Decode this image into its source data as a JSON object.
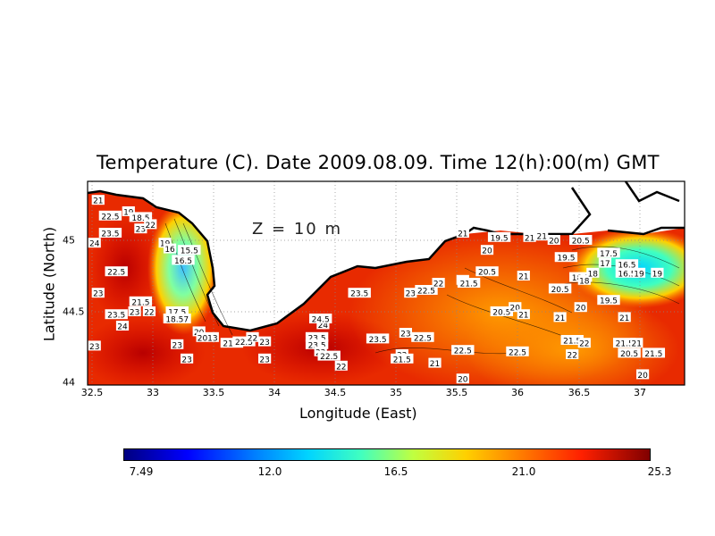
{
  "title": "Temperature (C). Date 2009.08.09. Time 12(h):00(m) GMT",
  "depth_label": "Z = 10 m",
  "xlabel": "Longitude (East)",
  "ylabel": "Latitude (North)",
  "x_ticks": [
    "32.5",
    "33",
    "33.5",
    "34",
    "34.5",
    "35",
    "35.5",
    "36",
    "36.5",
    "37"
  ],
  "y_ticks": [
    "45",
    "44.5",
    "44"
  ],
  "colorbar": {
    "ticks": [
      "7.49",
      "12.0",
      "16.5",
      "21.0",
      "25.3"
    ],
    "range": [
      7.49,
      25.3
    ]
  },
  "colors": {
    "land": "#ffffff",
    "coast": "#000000",
    "warm": "#e82000",
    "cold": "#00d4ff"
  },
  "chart_data": {
    "type": "heatmap",
    "title": "Temperature (C). Date 2009.08.09. Time 12(h):00(m) GMT",
    "xlabel": "Longitude (East)",
    "ylabel": "Latitude (North)",
    "xlim": [
      32.5,
      37.3
    ],
    "ylim": [
      44.0,
      45.35
    ],
    "colorbar_range": [
      7.49,
      25.3
    ],
    "grid": "dotted",
    "contour_labels": [
      {
        "lon": 32.55,
        "lat": 45.28,
        "t": "21"
      },
      {
        "lon": 32.65,
        "lat": 45.17,
        "t": "22.5"
      },
      {
        "lon": 32.65,
        "lat": 45.05,
        "t": "23.5"
      },
      {
        "lon": 32.52,
        "lat": 44.98,
        "t": "24"
      },
      {
        "lon": 32.8,
        "lat": 45.2,
        "t": "19"
      },
      {
        "lon": 32.9,
        "lat": 45.16,
        "t": "18.5"
      },
      {
        "lon": 32.9,
        "lat": 45.08,
        "t": "23"
      },
      {
        "lon": 32.98,
        "lat": 45.11,
        "t": "22"
      },
      {
        "lon": 33.1,
        "lat": 44.98,
        "t": "19"
      },
      {
        "lon": 33.14,
        "lat": 44.94,
        "t": "16"
      },
      {
        "lon": 33.3,
        "lat": 44.93,
        "t": "15.5"
      },
      {
        "lon": 33.25,
        "lat": 44.86,
        "t": "16.5"
      },
      {
        "lon": 32.7,
        "lat": 44.78,
        "t": "22.5"
      },
      {
        "lon": 32.55,
        "lat": 44.63,
        "t": "23"
      },
      {
        "lon": 32.9,
        "lat": 44.57,
        "t": "21.5"
      },
      {
        "lon": 32.7,
        "lat": 44.48,
        "t": "23.5"
      },
      {
        "lon": 32.85,
        "lat": 44.5,
        "t": "23"
      },
      {
        "lon": 32.97,
        "lat": 44.5,
        "t": "22"
      },
      {
        "lon": 33.2,
        "lat": 44.5,
        "t": "17.5"
      },
      {
        "lon": 33.2,
        "lat": 44.45,
        "t": "18.57"
      },
      {
        "lon": 32.75,
        "lat": 44.4,
        "t": "24"
      },
      {
        "lon": 33.38,
        "lat": 44.36,
        "t": "20"
      },
      {
        "lon": 33.45,
        "lat": 44.32,
        "t": "2013"
      },
      {
        "lon": 33.65,
        "lat": 44.28,
        "t": "21.5"
      },
      {
        "lon": 33.75,
        "lat": 44.29,
        "t": "22.5"
      },
      {
        "lon": 33.82,
        "lat": 44.32,
        "t": "22"
      },
      {
        "lon": 33.92,
        "lat": 44.29,
        "t": "23"
      },
      {
        "lon": 32.52,
        "lat": 44.26,
        "t": "23"
      },
      {
        "lon": 33.2,
        "lat": 44.27,
        "t": "23"
      },
      {
        "lon": 33.28,
        "lat": 44.17,
        "t": "23"
      },
      {
        "lon": 33.92,
        "lat": 44.17,
        "t": "23"
      },
      {
        "lon": 34.35,
        "lat": 44.32,
        "t": "23.5"
      },
      {
        "lon": 34.4,
        "lat": 44.41,
        "t": "24"
      },
      {
        "lon": 34.38,
        "lat": 44.45,
        "t": "24.5"
      },
      {
        "lon": 34.35,
        "lat": 44.27,
        "t": "23.5"
      },
      {
        "lon": 34.38,
        "lat": 44.22,
        "t": "23"
      },
      {
        "lon": 34.45,
        "lat": 44.19,
        "t": "22.5"
      },
      {
        "lon": 34.55,
        "lat": 44.12,
        "t": "22"
      },
      {
        "lon": 34.7,
        "lat": 44.63,
        "t": "23.5"
      },
      {
        "lon": 34.85,
        "lat": 44.31,
        "t": "23.5"
      },
      {
        "lon": 35.08,
        "lat": 44.35,
        "t": "23"
      },
      {
        "lon": 35.22,
        "lat": 44.32,
        "t": "22.5"
      },
      {
        "lon": 35.05,
        "lat": 44.2,
        "t": "22"
      },
      {
        "lon": 35.05,
        "lat": 44.17,
        "t": "21.5"
      },
      {
        "lon": 35.32,
        "lat": 44.14,
        "t": "21"
      },
      {
        "lon": 35.12,
        "lat": 44.63,
        "t": "23"
      },
      {
        "lon": 35.25,
        "lat": 44.65,
        "t": "22.5"
      },
      {
        "lon": 35.35,
        "lat": 44.7,
        "t": "22"
      },
      {
        "lon": 35.55,
        "lat": 44.72,
        "t": "21"
      },
      {
        "lon": 35.6,
        "lat": 44.7,
        "t": "21.5"
      },
      {
        "lon": 35.55,
        "lat": 44.23,
        "t": "22.5"
      },
      {
        "lon": 35.55,
        "lat": 44.03,
        "t": "20"
      },
      {
        "lon": 35.75,
        "lat": 44.78,
        "t": "20.5"
      },
      {
        "lon": 35.75,
        "lat": 44.93,
        "t": "20"
      },
      {
        "lon": 35.85,
        "lat": 45.02,
        "t": "19.5"
      },
      {
        "lon": 35.55,
        "lat": 45.05,
        "t": "21"
      },
      {
        "lon": 35.87,
        "lat": 44.5,
        "t": "20.5"
      },
      {
        "lon": 35.98,
        "lat": 44.53,
        "t": "20"
      },
      {
        "lon": 36.05,
        "lat": 44.48,
        "t": "21"
      },
      {
        "lon": 36.05,
        "lat": 44.75,
        "t": "21"
      },
      {
        "lon": 36.0,
        "lat": 44.22,
        "t": "22.5"
      },
      {
        "lon": 36.1,
        "lat": 45.02,
        "t": "21"
      },
      {
        "lon": 36.2,
        "lat": 45.03,
        "t": "21"
      },
      {
        "lon": 36.3,
        "lat": 45.0,
        "t": "20"
      },
      {
        "lon": 36.35,
        "lat": 44.46,
        "t": "21"
      },
      {
        "lon": 36.35,
        "lat": 44.66,
        "t": "20.5"
      },
      {
        "lon": 36.4,
        "lat": 44.88,
        "t": "19.5"
      },
      {
        "lon": 36.52,
        "lat": 45.0,
        "t": "20.5"
      },
      {
        "lon": 36.45,
        "lat": 44.3,
        "t": "21.5"
      },
      {
        "lon": 36.55,
        "lat": 44.28,
        "t": "22"
      },
      {
        "lon": 36.45,
        "lat": 44.2,
        "t": "22"
      },
      {
        "lon": 36.52,
        "lat": 44.53,
        "t": "20"
      },
      {
        "lon": 36.52,
        "lat": 44.74,
        "t": "18.5"
      },
      {
        "lon": 36.55,
        "lat": 44.72,
        "t": "18"
      },
      {
        "lon": 36.62,
        "lat": 44.77,
        "t": "18"
      },
      {
        "lon": 36.75,
        "lat": 44.58,
        "t": "19.5"
      },
      {
        "lon": 36.75,
        "lat": 44.91,
        "t": "17.5"
      },
      {
        "lon": 36.72,
        "lat": 44.84,
        "t": "17"
      },
      {
        "lon": 36.9,
        "lat": 44.83,
        "t": "16.5"
      },
      {
        "lon": 36.9,
        "lat": 44.77,
        "t": "16.5"
      },
      {
        "lon": 37.0,
        "lat": 44.77,
        "t": "19"
      },
      {
        "lon": 37.15,
        "lat": 44.77,
        "t": "19"
      },
      {
        "lon": 36.88,
        "lat": 44.46,
        "t": "21"
      },
      {
        "lon": 36.88,
        "lat": 44.28,
        "t": "21.5"
      },
      {
        "lon": 36.98,
        "lat": 44.28,
        "t": "21"
      },
      {
        "lon": 36.92,
        "lat": 44.21,
        "t": "20.5"
      },
      {
        "lon": 37.12,
        "lat": 44.21,
        "t": "21.5"
      },
      {
        "lon": 37.03,
        "lat": 44.06,
        "t": "20"
      }
    ]
  }
}
